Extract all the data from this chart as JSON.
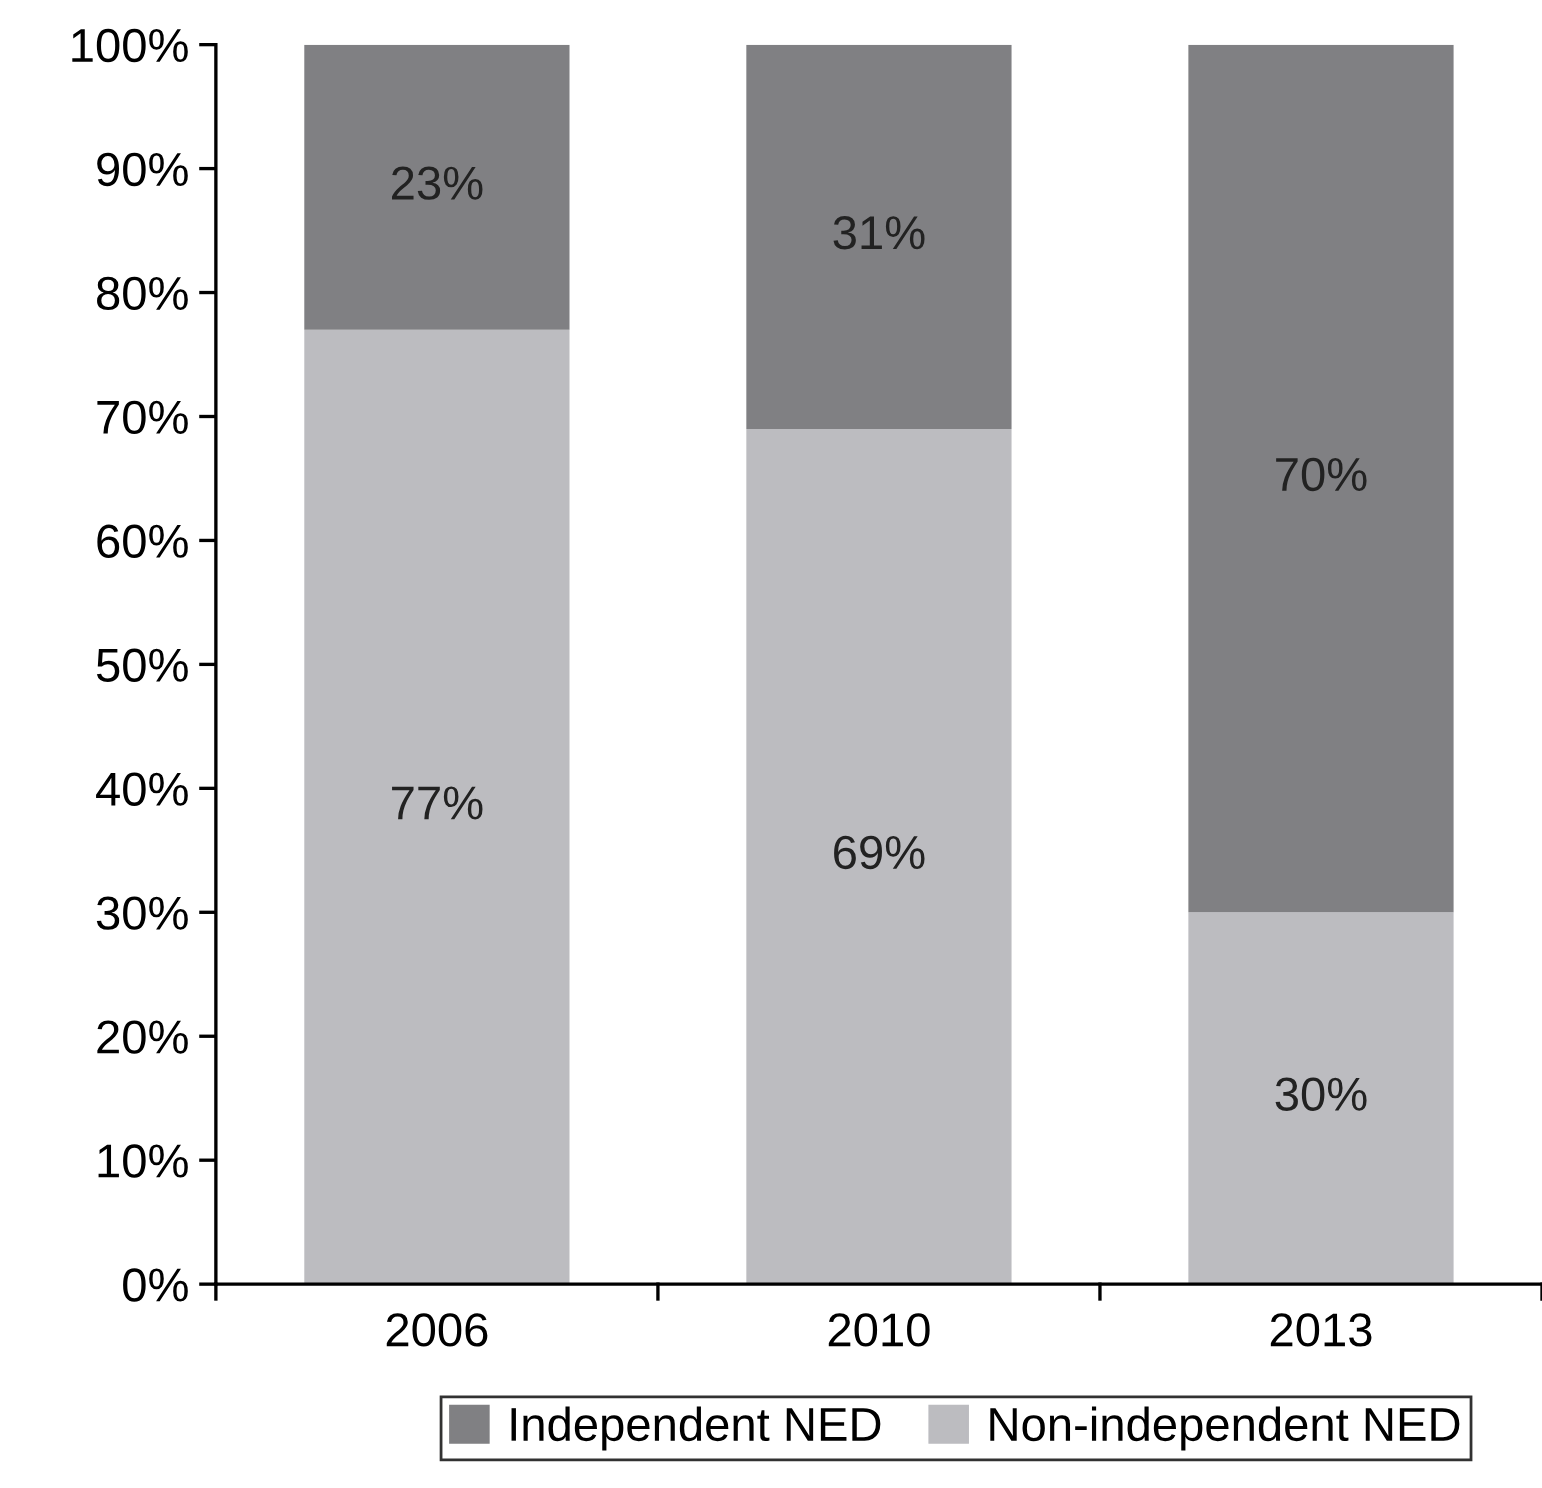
{
  "chart_data": {
    "type": "bar",
    "stacked": true,
    "categories": [
      "2006",
      "2010",
      "2013"
    ],
    "series": [
      {
        "name": "Non-independent NED",
        "color": "#bcbcc0",
        "values": [
          77,
          69,
          30
        ],
        "value_labels": [
          "77%",
          "69%",
          "30%"
        ]
      },
      {
        "name": "Independent NED",
        "color": "#808083",
        "values": [
          23,
          31,
          70
        ],
        "value_labels": [
          "23%",
          "31%",
          "70%"
        ]
      }
    ],
    "ylim": [
      0,
      100
    ],
    "yticks": [
      {
        "value": 0,
        "label": "0%"
      },
      {
        "value": 10,
        "label": "10%"
      },
      {
        "value": 20,
        "label": "20%"
      },
      {
        "value": 30,
        "label": "30%"
      },
      {
        "value": 40,
        "label": "40%"
      },
      {
        "value": 50,
        "label": "50%"
      },
      {
        "value": 60,
        "label": "60%"
      },
      {
        "value": 70,
        "label": "70%"
      },
      {
        "value": 80,
        "label": "80%"
      },
      {
        "value": 90,
        "label": "90%"
      },
      {
        "value": 100,
        "label": "100%"
      }
    ],
    "legend": "bottom"
  }
}
